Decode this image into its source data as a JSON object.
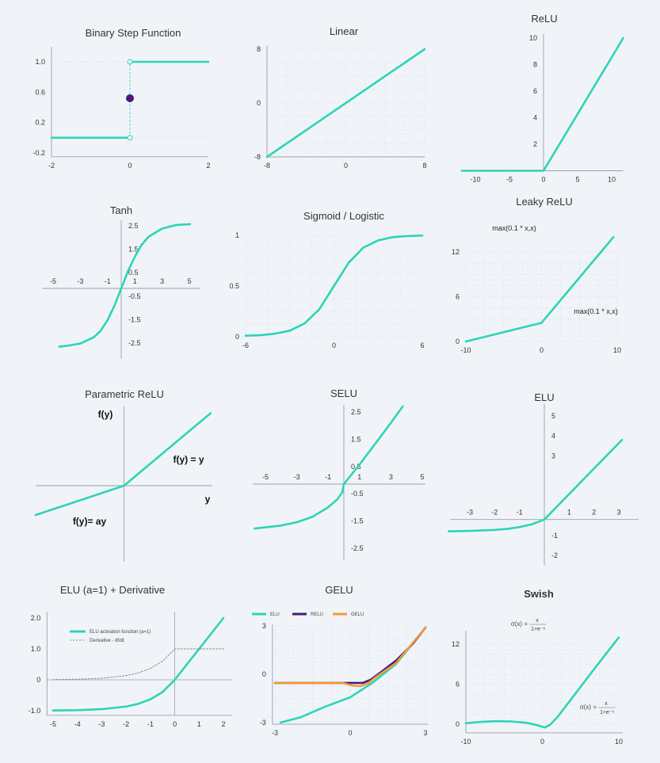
{
  "colors": {
    "teal": "#2cd4b8",
    "purple": "#4b1a78",
    "orange": "#f39a36",
    "axis": "#9aa0a8",
    "grid": "#dde2ea",
    "background": "#f0f4f9"
  },
  "chart_data": [
    {
      "type": "line",
      "title": "Binary Step Function",
      "xlim": [
        -2,
        2
      ],
      "ylim": [
        -0.25,
        1.2
      ],
      "xticks": [
        "-2",
        "0",
        "2"
      ],
      "yticks": [
        "1.0",
        "0.6",
        "0.2",
        "-0.2"
      ],
      "series": [
        {
          "name": "step-low",
          "color": "#2cd4b8",
          "points": [
            [
              -2,
              0
            ],
            [
              0,
              0
            ]
          ]
        },
        {
          "name": "step-high",
          "color": "#2cd4b8",
          "points": [
            [
              0,
              1
            ],
            [
              2,
              1
            ]
          ]
        }
      ],
      "markers": {
        "open": [
          [
            0,
            0
          ],
          [
            0,
            1
          ]
        ],
        "filled": [
          [
            0,
            0.52
          ]
        ],
        "filled_color": "#4b1a78"
      }
    },
    {
      "type": "line",
      "title": "Linear",
      "xlim": [
        -8,
        8
      ],
      "ylim": [
        -8,
        8
      ],
      "grid": true,
      "xticks": [
        "-8",
        "0",
        "8"
      ],
      "yticks": [
        "8",
        "0",
        "-8"
      ],
      "series": [
        {
          "name": "linear",
          "color": "#2cd4b8",
          "points": [
            [
              -8,
              -8
            ],
            [
              8,
              8
            ]
          ]
        }
      ]
    },
    {
      "type": "line",
      "title": "ReLU",
      "xlim": [
        -12,
        11.7
      ],
      "ylim": [
        0,
        10
      ],
      "xticks": [
        "-10",
        "-5",
        "0",
        "5",
        "10"
      ],
      "yticks": [
        "10",
        "8",
        "6",
        "4",
        "2"
      ],
      "series": [
        {
          "name": "relu",
          "color": "#2cd4b8",
          "points": [
            [
              -12,
              0
            ],
            [
              0,
              0
            ],
            [
              11.7,
              10
            ]
          ]
        }
      ]
    },
    {
      "type": "line",
      "title": "Tanh",
      "xlim": [
        -5,
        5
      ],
      "ylim": [
        -2.5,
        2.5
      ],
      "xticks": [
        "-5",
        "-3",
        "-1",
        "1",
        "3",
        "5"
      ],
      "yticks": [
        "2.5",
        "1.5",
        "0.5",
        "-0.5",
        "-1.5",
        "-2.5"
      ],
      "series": [
        {
          "name": "tanh",
          "color": "#2cd4b8",
          "points": [
            [
              -4.55,
              -2.48
            ],
            [
              -4,
              -2.45
            ],
            [
              -3,
              -2.35
            ],
            [
              -2,
              -2.08
            ],
            [
              -1.5,
              -1.8
            ],
            [
              -1,
              -1.35
            ],
            [
              -0.5,
              -0.74
            ],
            [
              0,
              0
            ],
            [
              0.5,
              0.74
            ],
            [
              1,
              1.35
            ],
            [
              1.5,
              1.86
            ],
            [
              2,
              2.2
            ],
            [
              3,
              2.55
            ],
            [
              4,
              2.7
            ],
            [
              5.05,
              2.74
            ]
          ]
        }
      ]
    },
    {
      "type": "line",
      "title": "Sigmoid / Logistic",
      "xlim": [
        -6,
        6
      ],
      "ylim": [
        0,
        1
      ],
      "grid": true,
      "xticks": [
        "-6",
        "0",
        "6"
      ],
      "yticks": [
        "1",
        "0.5",
        "0"
      ],
      "series": [
        {
          "name": "sigmoid",
          "color": "#2cd4b8",
          "points": [
            [
              -6,
              0.01
            ],
            [
              -5,
              0.015
            ],
            [
              -4,
              0.03
            ],
            [
              -3,
              0.06
            ],
            [
              -2,
              0.13
            ],
            [
              -1,
              0.27
            ],
            [
              0,
              0.5
            ],
            [
              1,
              0.73
            ],
            [
              2,
              0.88
            ],
            [
              3,
              0.95
            ],
            [
              4,
              0.982
            ],
            [
              5,
              0.993
            ],
            [
              6,
              0.998
            ]
          ]
        }
      ]
    },
    {
      "type": "line",
      "title": "Leaky ReLU",
      "xlim": [
        -10,
        10
      ],
      "ylim": [
        0,
        12
      ],
      "grid": true,
      "xticks": [
        "-10",
        "0",
        "10"
      ],
      "yticks": [
        "12",
        "6",
        "0"
      ],
      "annotations": [
        "max(0.1 * x,x)",
        "max(0.1 * x,x)"
      ],
      "series": [
        {
          "name": "leaky-relu",
          "color": "#2cd4b8",
          "points": [
            [
              -10,
              0
            ],
            [
              0,
              2.5
            ],
            [
              9.5,
              14
            ]
          ]
        }
      ]
    },
    {
      "type": "line",
      "title": "Parametric ReLU",
      "xlim": [
        -5,
        5
      ],
      "ylim": [
        -5,
        5
      ],
      "xticks": [],
      "yticks": [],
      "annotations": [
        "f(y)",
        "f(y) = y",
        "y",
        "f(y)= ay"
      ],
      "series": [
        {
          "name": "prelu",
          "color": "#2cd4b8",
          "points": [
            [
              -5,
              -1.66
            ],
            [
              0,
              0
            ],
            [
              4.9,
              4.1
            ]
          ]
        }
      ]
    },
    {
      "type": "line",
      "title": "SELU",
      "xlim": [
        -5,
        5
      ],
      "ylim": [
        -2.5,
        2.5
      ],
      "xticks": [
        "-5",
        "-3",
        "-1",
        "1",
        "3",
        "5"
      ],
      "yticks": [
        "2.5",
        "1.5",
        "0.5",
        "-0.5",
        "-1.5",
        "-2.5"
      ],
      "series": [
        {
          "name": "selu",
          "color": "#2cd4b8",
          "points": [
            [
              -5.7,
              -1.63
            ],
            [
              -4,
              -1.52
            ],
            [
              -3,
              -1.4
            ],
            [
              -2,
              -1.2
            ],
            [
              -1,
              -0.85
            ],
            [
              -0.4,
              -0.55
            ],
            [
              -0.1,
              -0.3
            ],
            [
              0,
              0
            ],
            [
              1,
              0.72
            ],
            [
              2,
              1.48
            ],
            [
              3,
              2.25
            ],
            [
              3.75,
              2.85
            ]
          ]
        }
      ]
    },
    {
      "type": "line",
      "title": "ELU",
      "xlim": [
        -3,
        3
      ],
      "ylim": [
        -2,
        5
      ],
      "xticks": [
        "-3",
        "-2",
        "-1",
        "1",
        "2",
        "3"
      ],
      "yticks": [
        "5",
        "4",
        "3",
        "-1",
        "-2"
      ],
      "series": [
        {
          "name": "elu",
          "color": "#2cd4b8",
          "points": [
            [
              -3.85,
              -0.59
            ],
            [
              -3,
              -0.57
            ],
            [
              -2,
              -0.52
            ],
            [
              -1.5,
              -0.47
            ],
            [
              -1,
              -0.38
            ],
            [
              -0.5,
              -0.24
            ],
            [
              0,
              0
            ],
            [
              1,
              1.28
            ],
            [
              2,
              2.56
            ],
            [
              3.13,
              4.0
            ]
          ]
        }
      ]
    },
    {
      "type": "line",
      "title": "ELU (a=1) + Derivative",
      "xlim": [
        -5,
        2
      ],
      "ylim": [
        -1,
        2
      ],
      "xticks": [
        "-5",
        "-4",
        "-3",
        "-2",
        "-1",
        "0",
        "1",
        "2"
      ],
      "yticks": [
        "2.0",
        "1.0",
        "0",
        "-1.0"
      ],
      "legend": [
        "ELU activation function (a=1)",
        "Derivative - df/dt"
      ],
      "legend_position": "top-left",
      "series": [
        {
          "name": "ELU activation function (a=1)",
          "color": "#2cd4b8",
          "points": [
            [
              -5,
              -0.993
            ],
            [
              -4,
              -0.982
            ],
            [
              -3,
              -0.95
            ],
            [
              -2,
              -0.865
            ],
            [
              -1.5,
              -0.777
            ],
            [
              -1,
              -0.632
            ],
            [
              -0.5,
              -0.393
            ],
            [
              0,
              0
            ],
            [
              2,
              2
            ]
          ]
        },
        {
          "name": "Derivative - df/dt",
          "color": "#888888",
          "dashed": true,
          "points": [
            [
              -5,
              0.007
            ],
            [
              -4,
              0.018
            ],
            [
              -3,
              0.05
            ],
            [
              -2,
              0.135
            ],
            [
              -1.5,
              0.223
            ],
            [
              -1,
              0.368
            ],
            [
              -0.5,
              0.607
            ],
            [
              0,
              1
            ],
            [
              2,
              1
            ]
          ]
        }
      ]
    },
    {
      "type": "line",
      "title": "GELU",
      "xlim": [
        -3,
        3
      ],
      "ylim": [
        -3,
        3
      ],
      "grid": true,
      "xticks": [
        "-3",
        "0",
        "3"
      ],
      "yticks": [
        "3",
        "0",
        "-3"
      ],
      "legend": [
        "ELU",
        "RELU",
        "GELU"
      ],
      "legend_position": "top",
      "series": [
        {
          "name": "ELU",
          "color": "#2cd4b8",
          "points": [
            [
              -2.78,
              -3
            ],
            [
              -1.96,
              -2.66
            ],
            [
              -1.01,
              -2.02
            ],
            [
              0,
              -1.43
            ],
            [
              0.88,
              -0.54
            ],
            [
              1.83,
              0.64
            ],
            [
              3,
              2.9
            ]
          ]
        },
        {
          "name": "RELU",
          "color": "#4b1a78",
          "points": [
            [
              -3,
              -0.54
            ],
            [
              0.5,
              -0.54
            ],
            [
              0.8,
              -0.35
            ],
            [
              1.2,
              0.1
            ],
            [
              1.83,
              0.85
            ],
            [
              2.5,
              1.9
            ],
            [
              3,
              2.9
            ]
          ]
        },
        {
          "name": "GELU",
          "color": "#f39a36",
          "points": [
            [
              -3,
              -0.54
            ],
            [
              -0.3,
              -0.54
            ],
            [
              0.1,
              -0.7
            ],
            [
              0.4,
              -0.74
            ],
            [
              0.7,
              -0.57
            ],
            [
              1.0,
              -0.2
            ],
            [
              1.83,
              0.7
            ],
            [
              3,
              2.9
            ]
          ]
        }
      ]
    },
    {
      "type": "line",
      "title": "Swish",
      "xlim": [
        -10,
        10
      ],
      "ylim": [
        0,
        12
      ],
      "grid": true,
      "xticks": [
        "-10",
        "0",
        "10"
      ],
      "yticks": [
        "12",
        "6",
        "0"
      ],
      "formula": {
        "lhs": "σ(x) =",
        "num": "x",
        "den": "1+e⁻ˣ"
      },
      "series": [
        {
          "name": "swish",
          "color": "#2cd4b8",
          "points": [
            [
              -10,
              0.15
            ],
            [
              -8,
              0.35
            ],
            [
              -6,
              0.45
            ],
            [
              -4,
              0.4
            ],
            [
              -2,
              0.2
            ],
            [
              -0.5,
              -0.2
            ],
            [
              0.3,
              -0.5
            ],
            [
              1,
              -0.1
            ],
            [
              2,
              1.1
            ],
            [
              3,
              2.6
            ],
            [
              5,
              5.6
            ],
            [
              7,
              8.6
            ],
            [
              10,
              13
            ]
          ]
        }
      ]
    }
  ]
}
